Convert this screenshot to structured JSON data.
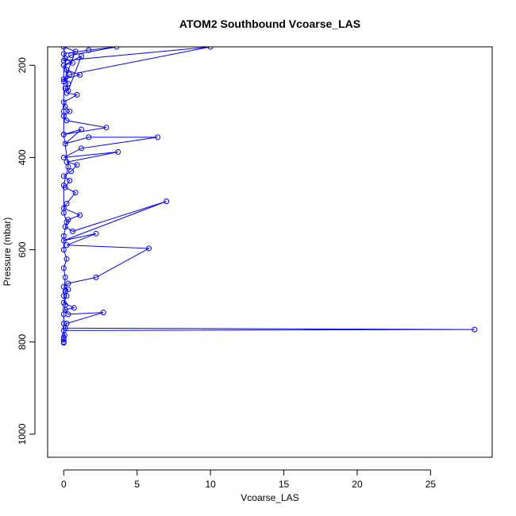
{
  "chart_data": {
    "type": "line",
    "title": "ATOM2 Southbound Vcoarse_LAS",
    "xlabel": "Vcoarse_LAS",
    "ylabel": "Pressure (mbar)",
    "xlim": [
      -1.1,
      29.2
    ],
    "ylim": [
      1050,
      160
    ],
    "y_reversed": true,
    "x_ticks": [
      0,
      5,
      10,
      15,
      20,
      25
    ],
    "y_ticks": [
      200,
      400,
      600,
      800,
      1000
    ],
    "x_tick_labels": [
      "0",
      "5",
      "10",
      "15",
      "20",
      "25"
    ],
    "y_tick_labels": [
      "200",
      "400",
      "600",
      "800",
      "1000"
    ],
    "grid": false,
    "legend": "none",
    "series_color": "#0000ff",
    "marker": "open-circle",
    "series": [
      {
        "points": [
          [
            0.0,
            800
          ],
          [
            0.0,
            795
          ],
          [
            0.05,
            785
          ],
          [
            0.0,
            775
          ],
          [
            28.0,
            773
          ],
          [
            0.1,
            770
          ],
          [
            0.2,
            760
          ],
          [
            2.7,
            736
          ],
          [
            0.3,
            740
          ],
          [
            0.1,
            730
          ],
          [
            0.7,
            726
          ],
          [
            0.0,
            715
          ],
          [
            0.2,
            700
          ],
          [
            0.1,
            690
          ],
          [
            0.3,
            686
          ],
          [
            0.0,
            680
          ],
          [
            0.3,
            673
          ],
          [
            2.2,
            660
          ],
          [
            5.8,
            597
          ],
          [
            0.2,
            590
          ],
          [
            2.2,
            565
          ],
          [
            0.0,
            580
          ],
          [
            7.0,
            495
          ],
          [
            0.6,
            560
          ],
          [
            0.1,
            550
          ],
          [
            0.3,
            535
          ],
          [
            1.1,
            525
          ],
          [
            0.0,
            510
          ],
          [
            0.2,
            500
          ],
          [
            0.8,
            476
          ],
          [
            0.1,
            465
          ],
          [
            0.4,
            450
          ],
          [
            0.0,
            440
          ],
          [
            0.5,
            430
          ],
          [
            0.9,
            416
          ],
          [
            0.2,
            410
          ],
          [
            3.7,
            388
          ],
          [
            0.0,
            400
          ],
          [
            1.2,
            380
          ],
          [
            6.4,
            356
          ],
          [
            1.7,
            356
          ],
          [
            0.1,
            370
          ],
          [
            1.2,
            339
          ],
          [
            0.0,
            350
          ],
          [
            2.9,
            335
          ],
          [
            0.2,
            320
          ],
          [
            0.0,
            310
          ],
          [
            0.4,
            300
          ],
          [
            0.1,
            290
          ],
          [
            0.0,
            280
          ],
          [
            0.9,
            264
          ],
          [
            0.2,
            260
          ],
          [
            0.1,
            250
          ],
          [
            0.3,
            240
          ],
          [
            0.0,
            230
          ],
          [
            1.1,
            221
          ],
          [
            0.2,
            210
          ],
          [
            0.0,
            200
          ],
          [
            0.6,
            195
          ],
          [
            0.1,
            185
          ],
          [
            0.0,
            175
          ],
          [
            1.7,
            167
          ],
          [
            3.6,
            160
          ],
          [
            0.5,
            178
          ],
          [
            0.0,
            190
          ],
          [
            10.0,
            160
          ],
          [
            0.4,
            220
          ],
          [
            0.0,
            235
          ],
          [
            0.8,
            170
          ],
          [
            0.0,
            160
          ],
          [
            0.3,
            255
          ],
          [
            1.2,
            180
          ],
          [
            0.0,
            200
          ],
          [
            0.0,
            300
          ],
          [
            0.0,
            350
          ],
          [
            0.3,
            420
          ],
          [
            0.0,
            460
          ],
          [
            0.0,
            520
          ],
          [
            0.2,
            540
          ],
          [
            0.0,
            570
          ],
          [
            0.0,
            600
          ],
          [
            0.2,
            620
          ],
          [
            0.0,
            640
          ],
          [
            0.1,
            660
          ],
          [
            0.0,
            700
          ],
          [
            0.1,
            720
          ],
          [
            0.0,
            740
          ],
          [
            0.0,
            760
          ],
          [
            0.0,
            790
          ],
          [
            0.0,
            802
          ]
        ]
      }
    ]
  }
}
